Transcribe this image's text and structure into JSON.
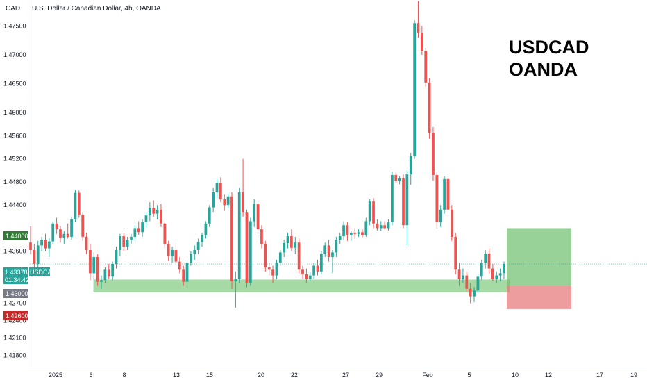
{
  "chart_data": {
    "type": "candlestick",
    "title": "U.S. Dollar / Canadian Dollar, 4h, OANDA",
    "currency": "CAD",
    "annotation": [
      "USDCAD",
      "OANDA"
    ],
    "ylim": [
      1.416,
      1.4795
    ],
    "y_ticks": [
      "1.47500",
      "1.47000",
      "1.46500",
      "1.46000",
      "1.45600",
      "1.45200",
      "1.44800",
      "1.44400",
      "1.43600",
      "1.42700",
      "1.42400",
      "1.42100",
      "1.41800"
    ],
    "x_ticks": [
      "2025",
      "6",
      "8",
      "13",
      "15",
      "20",
      "22",
      "27",
      "29",
      "Feb",
      "5",
      "10",
      "12",
      "17",
      "19"
    ],
    "price_badges": {
      "target": "1.44000",
      "current": "1.43378",
      "current_symbol": "USDCAD",
      "countdown": "01:34:42",
      "entry": "1.43000",
      "stop": "1.42600"
    },
    "support_zone": [
      1.4289,
      1.4311
    ],
    "position": {
      "entry": 1.43,
      "target": 1.44,
      "stop": 1.426
    },
    "candles": [
      [
        1.4375,
        1.4403,
        1.4355,
        1.4362
      ],
      [
        1.4362,
        1.4372,
        1.433,
        1.4338
      ],
      [
        1.4338,
        1.4378,
        1.4333,
        1.437
      ],
      [
        1.437,
        1.4385,
        1.436,
        1.438
      ],
      [
        1.438,
        1.439,
        1.436,
        1.4365
      ],
      [
        1.4365,
        1.4383,
        1.435,
        1.4377
      ],
      [
        1.4377,
        1.4412,
        1.4372,
        1.4408
      ],
      [
        1.4408,
        1.4418,
        1.439,
        1.4398
      ],
      [
        1.4398,
        1.4403,
        1.4375,
        1.4383
      ],
      [
        1.4383,
        1.4395,
        1.4372,
        1.439
      ],
      [
        1.439,
        1.4408,
        1.4382,
        1.4385
      ],
      [
        1.4385,
        1.442,
        1.438,
        1.4415
      ],
      [
        1.4415,
        1.4466,
        1.441,
        1.4461
      ],
      [
        1.4461,
        1.4465,
        1.4418,
        1.4423
      ],
      [
        1.4423,
        1.4428,
        1.4378,
        1.4385
      ],
      [
        1.4385,
        1.4392,
        1.4355,
        1.4362
      ],
      [
        1.4362,
        1.4372,
        1.431,
        1.4322
      ],
      [
        1.4322,
        1.4358,
        1.429,
        1.435
      ],
      [
        1.435,
        1.4355,
        1.43,
        1.4307
      ],
      [
        1.4307,
        1.4318,
        1.4295,
        1.431
      ],
      [
        1.431,
        1.4332,
        1.4305,
        1.4328
      ],
      [
        1.4328,
        1.4338,
        1.4312,
        1.4316
      ],
      [
        1.4316,
        1.4342,
        1.431,
        1.4338
      ],
      [
        1.4338,
        1.4368,
        1.433,
        1.4362
      ],
      [
        1.4362,
        1.439,
        1.4352,
        1.4386
      ],
      [
        1.4386,
        1.4392,
        1.436,
        1.4368
      ],
      [
        1.4368,
        1.4385,
        1.4362,
        1.438
      ],
      [
        1.438,
        1.439,
        1.4372,
        1.4385
      ],
      [
        1.4385,
        1.4405,
        1.4378,
        1.44
      ],
      [
        1.44,
        1.4412,
        1.4388,
        1.4393
      ],
      [
        1.4393,
        1.4415,
        1.4385,
        1.441
      ],
      [
        1.441,
        1.4428,
        1.4402,
        1.4422
      ],
      [
        1.4422,
        1.4445,
        1.4412,
        1.4435
      ],
      [
        1.4435,
        1.4448,
        1.442,
        1.4425
      ],
      [
        1.4425,
        1.444,
        1.4415,
        1.4432
      ],
      [
        1.4432,
        1.4442,
        1.4402,
        1.4408
      ],
      [
        1.4408,
        1.4412,
        1.4365,
        1.4372
      ],
      [
        1.4372,
        1.4378,
        1.4343,
        1.4352
      ],
      [
        1.4352,
        1.4368,
        1.434,
        1.4362
      ],
      [
        1.4362,
        1.4372,
        1.4335,
        1.4342
      ],
      [
        1.4342,
        1.435,
        1.4322,
        1.4328
      ],
      [
        1.4328,
        1.4335,
        1.43,
        1.4307
      ],
      [
        1.4307,
        1.4345,
        1.4302,
        1.434
      ],
      [
        1.434,
        1.436,
        1.4335,
        1.4355
      ],
      [
        1.4355,
        1.437,
        1.4345,
        1.4362
      ],
      [
        1.4362,
        1.4382,
        1.4355,
        1.4376
      ],
      [
        1.4376,
        1.4392,
        1.4368,
        1.4388
      ],
      [
        1.4388,
        1.4412,
        1.4382,
        1.4408
      ],
      [
        1.4408,
        1.444,
        1.4402,
        1.4436
      ],
      [
        1.4436,
        1.447,
        1.4428,
        1.4462
      ],
      [
        1.4462,
        1.4485,
        1.4452,
        1.4478
      ],
      [
        1.4478,
        1.4488,
        1.4445,
        1.445
      ],
      [
        1.445,
        1.4458,
        1.443,
        1.444
      ],
      [
        1.444,
        1.446,
        1.4435,
        1.4455
      ],
      [
        1.4455,
        1.4462,
        1.4295,
        1.4308
      ],
      [
        1.4308,
        1.4325,
        1.4262,
        1.4312
      ],
      [
        1.4312,
        1.447,
        1.4305,
        1.4462
      ],
      [
        1.4462,
        1.452,
        1.442,
        1.4428
      ],
      [
        1.4428,
        1.4432,
        1.4298,
        1.4305
      ],
      [
        1.4305,
        1.4418,
        1.43,
        1.4412
      ],
      [
        1.4412,
        1.445,
        1.4402,
        1.4442
      ],
      [
        1.4442,
        1.4448,
        1.439,
        1.4398
      ],
      [
        1.4398,
        1.4405,
        1.4365,
        1.4372
      ],
      [
        1.4372,
        1.4378,
        1.4325,
        1.4332
      ],
      [
        1.4332,
        1.434,
        1.4318,
        1.4328
      ],
      [
        1.4328,
        1.4335,
        1.4305,
        1.4318
      ],
      [
        1.4318,
        1.4345,
        1.4312,
        1.434
      ],
      [
        1.434,
        1.4362,
        1.4335,
        1.4358
      ],
      [
        1.4358,
        1.438,
        1.435,
        1.4374
      ],
      [
        1.4374,
        1.4392,
        1.4365,
        1.4386
      ],
      [
        1.4386,
        1.4398,
        1.436,
        1.4366
      ],
      [
        1.4366,
        1.4385,
        1.4355,
        1.4375
      ],
      [
        1.4375,
        1.4382,
        1.4322,
        1.4328
      ],
      [
        1.4328,
        1.4335,
        1.4312,
        1.432
      ],
      [
        1.432,
        1.433,
        1.4305,
        1.4312
      ],
      [
        1.4312,
        1.4325,
        1.4308,
        1.4318
      ],
      [
        1.4318,
        1.434,
        1.4312,
        1.4335
      ],
      [
        1.4335,
        1.4345,
        1.4318,
        1.4325
      ],
      [
        1.4325,
        1.436,
        1.432,
        1.4356
      ],
      [
        1.4356,
        1.4375,
        1.435,
        1.437
      ],
      [
        1.437,
        1.438,
        1.4342,
        1.435
      ],
      [
        1.435,
        1.4362,
        1.4322,
        1.4358
      ],
      [
        1.4358,
        1.4385,
        1.435,
        1.438
      ],
      [
        1.438,
        1.4392,
        1.4372,
        1.4386
      ],
      [
        1.4386,
        1.4412,
        1.438,
        1.4405
      ],
      [
        1.4405,
        1.441,
        1.4378,
        1.4388
      ],
      [
        1.4388,
        1.4395,
        1.4378,
        1.4392
      ],
      [
        1.4392,
        1.4398,
        1.4382,
        1.439
      ],
      [
        1.439,
        1.4398,
        1.4385,
        1.4393
      ],
      [
        1.4393,
        1.4398,
        1.4384,
        1.4388
      ],
      [
        1.4388,
        1.4418,
        1.4385,
        1.4412
      ],
      [
        1.4412,
        1.445,
        1.4405,
        1.4446
      ],
      [
        1.4446,
        1.4452,
        1.44,
        1.4408
      ],
      [
        1.4408,
        1.4415,
        1.4396,
        1.44
      ],
      [
        1.44,
        1.4412,
        1.4395,
        1.4405
      ],
      [
        1.4405,
        1.4412,
        1.4398,
        1.44
      ],
      [
        1.44,
        1.4415,
        1.4396,
        1.441
      ],
      [
        1.441,
        1.4498,
        1.4405,
        1.4492
      ],
      [
        1.4492,
        1.4495,
        1.4478,
        1.4482
      ],
      [
        1.4482,
        1.449,
        1.4476,
        1.4486
      ],
      [
        1.4486,
        1.4493,
        1.44,
        1.4405
      ],
      [
        1.4405,
        1.45,
        1.437,
        1.4493
      ],
      [
        1.4493,
        1.453,
        1.4475,
        1.4525
      ],
      [
        1.4525,
        1.476,
        1.452,
        1.4755
      ],
      [
        1.4755,
        1.4793,
        1.473,
        1.4738
      ],
      [
        1.4738,
        1.475,
        1.47,
        1.4707
      ],
      [
        1.4707,
        1.4712,
        1.4645,
        1.4652
      ],
      [
        1.4652,
        1.466,
        1.4555,
        1.4565
      ],
      [
        1.4565,
        1.4575,
        1.4482,
        1.4492
      ],
      [
        1.4492,
        1.4498,
        1.44,
        1.441
      ],
      [
        1.441,
        1.444,
        1.4402,
        1.4432
      ],
      [
        1.4432,
        1.449,
        1.4425,
        1.4485
      ],
      [
        1.4485,
        1.449,
        1.4425,
        1.4432
      ],
      [
        1.4432,
        1.444,
        1.4378,
        1.4385
      ],
      [
        1.4385,
        1.4392,
        1.432,
        1.4328
      ],
      [
        1.4328,
        1.434,
        1.43,
        1.4312
      ],
      [
        1.4312,
        1.433,
        1.4305,
        1.4318
      ],
      [
        1.4318,
        1.4325,
        1.429,
        1.4295
      ],
      [
        1.4295,
        1.4305,
        1.427,
        1.4282
      ],
      [
        1.4282,
        1.4298,
        1.4272,
        1.4292
      ],
      [
        1.4292,
        1.432,
        1.4288,
        1.4316
      ],
      [
        1.4316,
        1.4345,
        1.431,
        1.434
      ],
      [
        1.434,
        1.4362,
        1.433,
        1.4356
      ],
      [
        1.4356,
        1.4365,
        1.4322,
        1.433
      ],
      [
        1.433,
        1.4338,
        1.4308,
        1.4312
      ],
      [
        1.4312,
        1.4325,
        1.4305,
        1.4318
      ],
      [
        1.4318,
        1.433,
        1.4308,
        1.4322
      ],
      [
        1.4322,
        1.4342,
        1.4312,
        1.4338
      ]
    ]
  }
}
